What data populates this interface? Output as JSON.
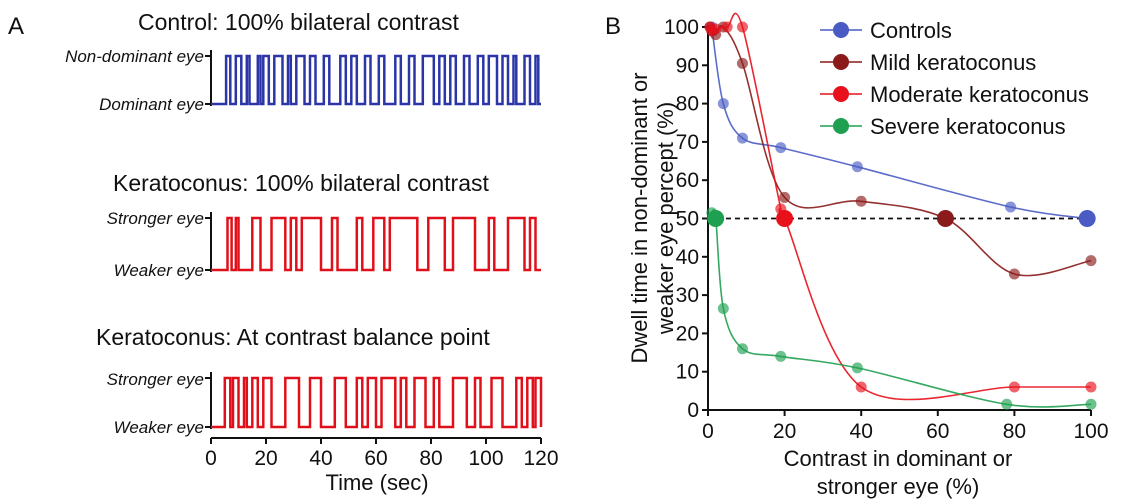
{
  "panel_labels": {
    "a": "A",
    "b": "B"
  },
  "panelA": {
    "traces": [
      {
        "title": "Control: 100% bilateral contrast",
        "top_label": "Non-dominant eye",
        "bottom_label": "Dominant eye",
        "color": "#2b35a8",
        "transitions": [
          5.5,
          7,
          9,
          11,
          13,
          14,
          17,
          18,
          19,
          21,
          23,
          26,
          28,
          29,
          31,
          34,
          36,
          38,
          41,
          43,
          47,
          49,
          51,
          53,
          56,
          58,
          61,
          63,
          67,
          69,
          72,
          74,
          77,
          81,
          83,
          85,
          87,
          89,
          92,
          94,
          97,
          99,
          101,
          104,
          106,
          108,
          110,
          111,
          114,
          116,
          118,
          119
        ],
        "start_level": "bottom"
      },
      {
        "title": "Keratoconus: 100% bilateral contrast",
        "top_label": "Stronger eye",
        "bottom_label": "Weaker eye",
        "color": "#e0101a",
        "transitions": [
          6,
          7.5,
          9,
          10,
          15,
          18,
          22,
          27,
          29,
          31,
          33,
          40,
          44,
          46,
          53,
          55,
          59,
          63,
          65,
          75,
          79,
          85,
          88,
          96,
          101,
          103,
          108,
          114,
          116,
          118
        ],
        "start_level": "bottom"
      },
      {
        "title": "Keratoconus: At contrast balance point",
        "top_label": "Stronger eye",
        "bottom_label": "Weaker eye",
        "color": "#e0101a",
        "transitions": [
          5,
          7,
          8,
          10,
          12,
          13,
          15,
          17,
          19,
          22,
          27,
          32,
          36,
          40,
          45,
          49,
          53,
          55,
          57,
          60,
          62,
          67,
          69,
          71,
          74,
          78,
          81,
          83,
          88,
          93,
          96,
          98,
          102,
          106,
          111,
          113,
          115,
          117,
          118,
          120
        ],
        "start_level": "bottom"
      }
    ],
    "xaxis": {
      "label": "Time (sec)",
      "ticks": [
        "0",
        "20",
        "40",
        "60",
        "80",
        "100",
        "120"
      ],
      "range": [
        0,
        120
      ]
    }
  },
  "chart_data": {
    "type": "scatter",
    "xlabel": "Contrast in dominant or stronger eye (%)",
    "xlabel_lines": [
      "Contrast in dominant or",
      "stronger eye (%)"
    ],
    "ylabel": "Dwell time in non-dominant or weaker eye percept (%)",
    "ylabel_lines": [
      "Dwell time in non-dominant or",
      "weaker eye percept (%)"
    ],
    "xlim": [
      0,
      100
    ],
    "ylim": [
      0,
      100
    ],
    "xticks": [
      "0",
      "20",
      "40",
      "60",
      "80",
      "100"
    ],
    "yticks": [
      "0",
      "10",
      "20",
      "30",
      "40",
      "50",
      "60",
      "70",
      "80",
      "90",
      "100"
    ],
    "reference_line": {
      "y": 50,
      "style": "dashed"
    },
    "legend_position": "top-right",
    "series": [
      {
        "name": "Controls",
        "color": "#4a5cc4",
        "x": [
          1,
          4,
          9,
          19,
          39,
          79,
          99
        ],
        "y": [
          100,
          80,
          71,
          68.5,
          63.5,
          53,
          50
        ],
        "balance_point": {
          "x": 99,
          "y": 50
        }
      },
      {
        "name": "Mild keratoconus",
        "color": "#8b1a1a",
        "x": [
          0.5,
          1,
          2,
          4,
          9,
          20,
          40,
          62,
          80,
          100
        ],
        "y": [
          100,
          99,
          98,
          100,
          90.5,
          55.5,
          54.5,
          50,
          35.5,
          39
        ],
        "balance_point": {
          "x": 62,
          "y": 50
        }
      },
      {
        "name": "Moderate keratoconus",
        "color": "#e8101a",
        "x": [
          0.5,
          1,
          2,
          5,
          9,
          19,
          20,
          40,
          80,
          100
        ],
        "y": [
          100,
          99,
          99.5,
          100,
          100,
          52.5,
          50,
          6,
          6,
          6
        ],
        "balance_point": {
          "x": 20,
          "y": 50
        }
      },
      {
        "name": "Severe keratoconus",
        "color": "#1fa050",
        "x": [
          1,
          2,
          4,
          9,
          19,
          39,
          78,
          100
        ],
        "y": [
          51.5,
          50,
          26.5,
          16,
          14,
          11,
          1.5,
          1.5
        ],
        "balance_point": {
          "x": 2,
          "y": 50
        }
      }
    ]
  }
}
